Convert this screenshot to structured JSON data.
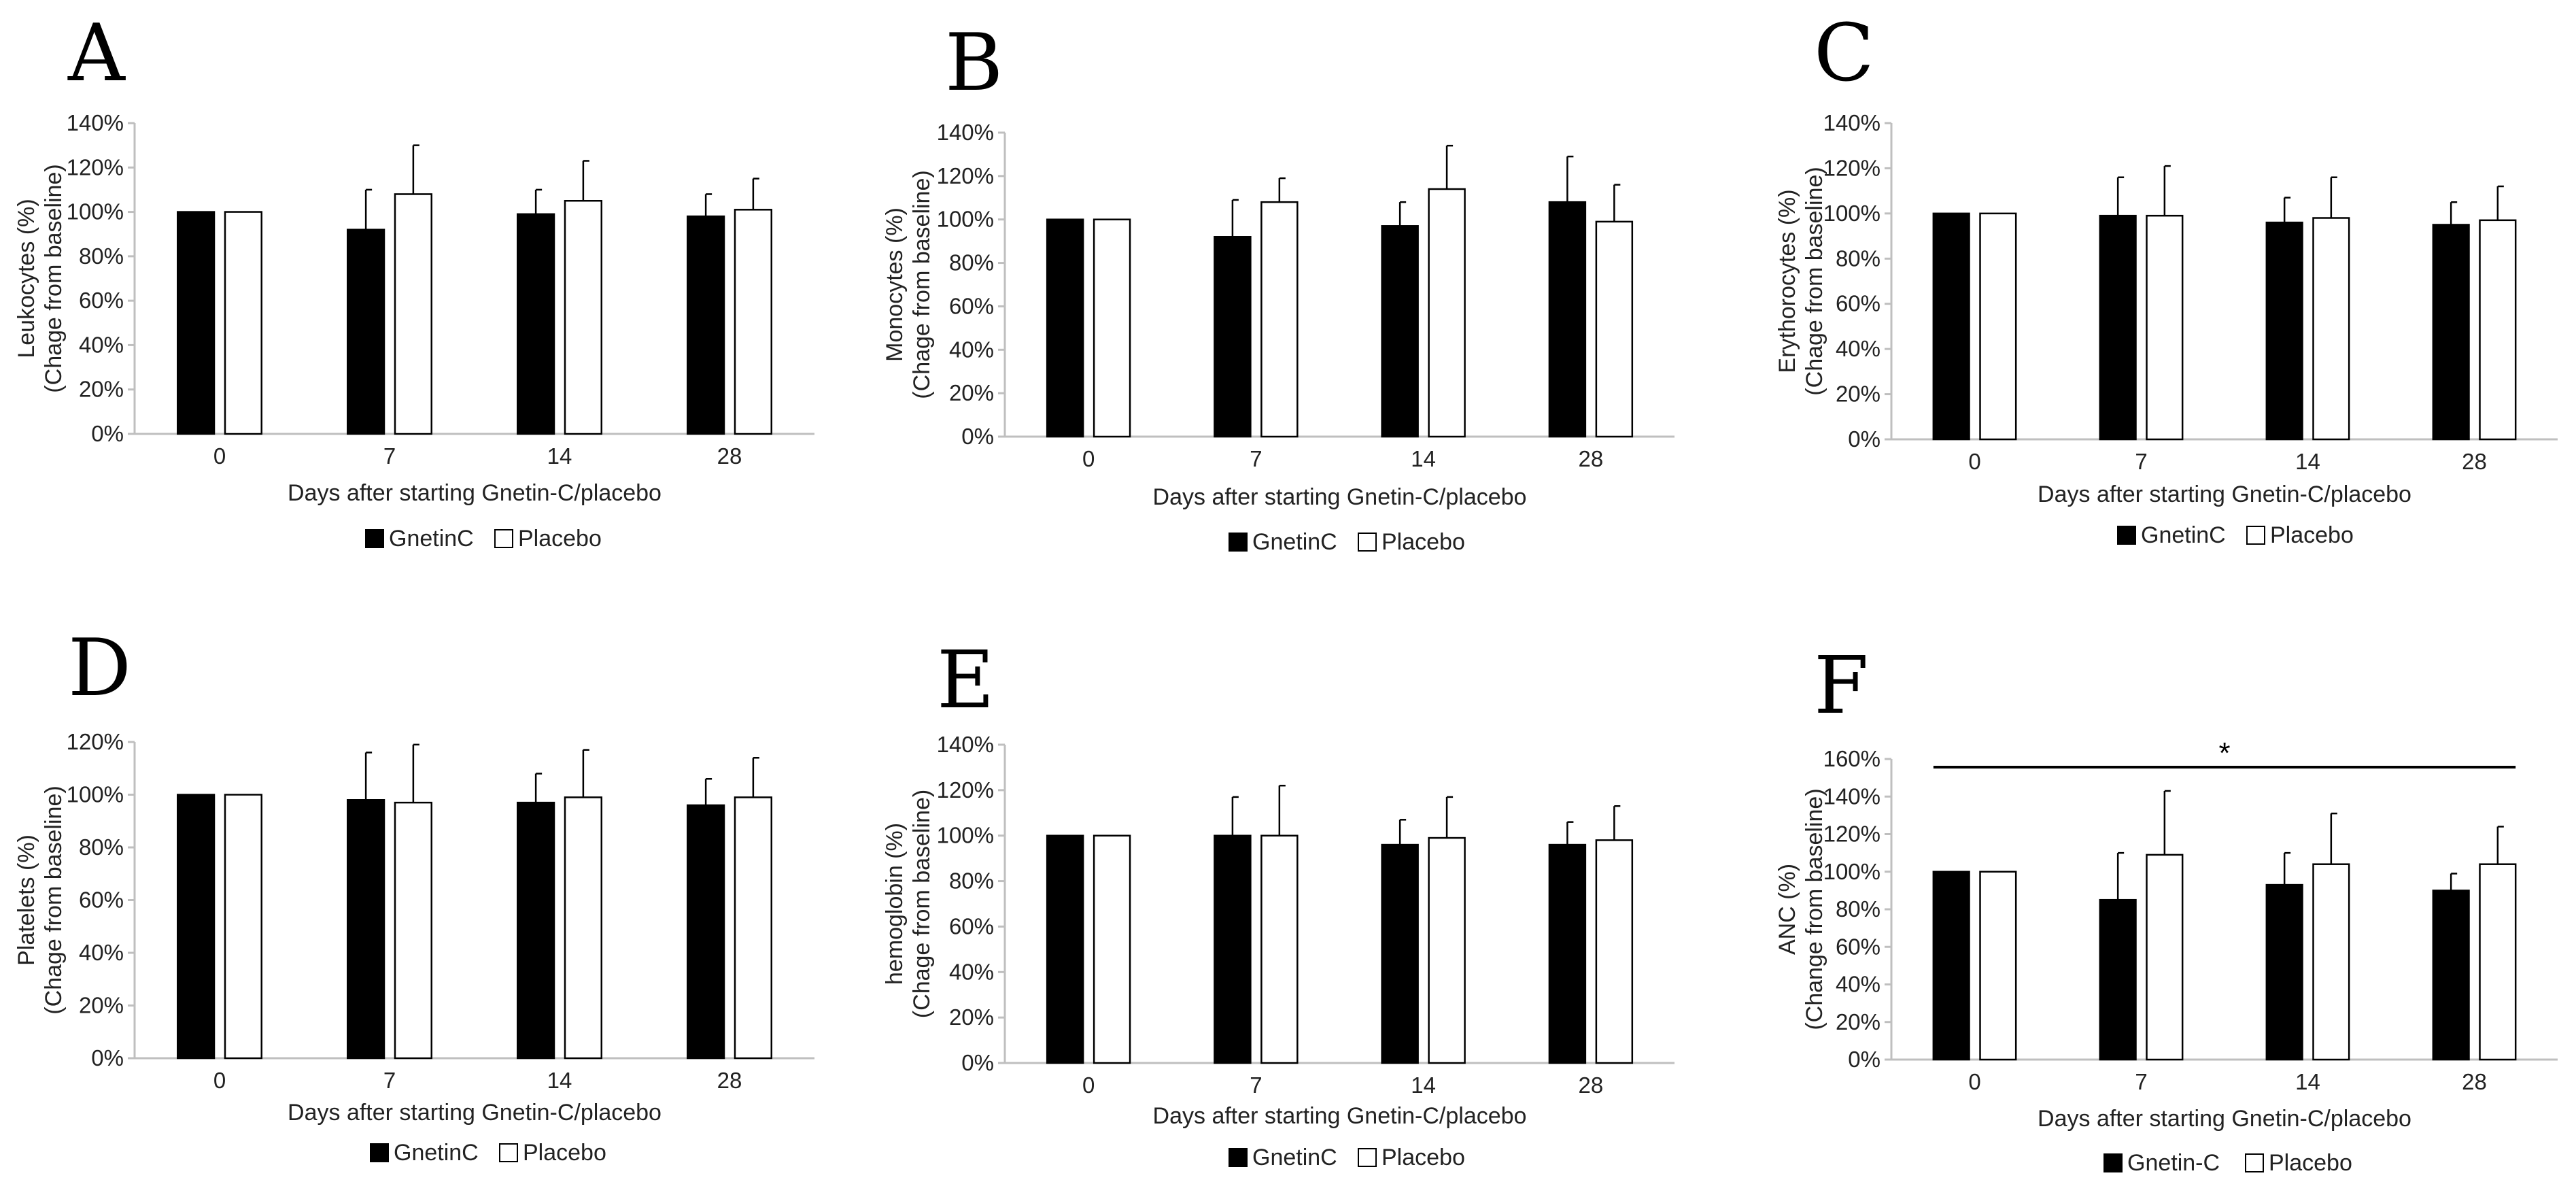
{
  "figure": {
    "colors": {
      "treatment": "#000000",
      "placebo": "#ffffff",
      "outline": "#000000",
      "axis": "#bfbfbf"
    }
  },
  "chart_data": [
    {
      "panel": "A",
      "type": "bar",
      "ylabel_line1": "Leukocytes (%)",
      "ylabel_line2": "(Chage from baseline)",
      "xlabel": "Days after starting Gnetin-C/placebo",
      "categories": [
        "0",
        "7",
        "14",
        "28"
      ],
      "ylim": [
        0,
        140
      ],
      "ystep": 20,
      "yticks": [
        "0%",
        "20%",
        "40%",
        "60%",
        "80%",
        "100%",
        "120%",
        "140%"
      ],
      "series": [
        {
          "name": "GnetinC",
          "values": [
            100,
            92,
            99,
            98
          ],
          "errors": [
            0,
            18,
            11,
            10
          ]
        },
        {
          "name": "Placebo",
          "values": [
            100,
            108,
            105,
            101
          ],
          "errors": [
            0,
            22,
            18,
            14
          ]
        }
      ]
    },
    {
      "panel": "B",
      "type": "bar",
      "ylabel_line1": "Monocytes (%)",
      "ylabel_line2": "(Chage from baseline)",
      "xlabel": "Days after starting Gnetin-C/placebo",
      "categories": [
        "0",
        "7",
        "14",
        "28"
      ],
      "ylim": [
        0,
        140
      ],
      "ystep": 20,
      "yticks": [
        "0%",
        "20%",
        "40%",
        "60%",
        "80%",
        "100%",
        "120%",
        "140%"
      ],
      "series": [
        {
          "name": "GnetinC",
          "values": [
            100,
            92,
            97,
            108
          ],
          "errors": [
            0,
            17,
            11,
            21
          ]
        },
        {
          "name": "Placebo",
          "values": [
            100,
            108,
            114,
            99
          ],
          "errors": [
            0,
            11,
            20,
            17
          ]
        }
      ]
    },
    {
      "panel": "C",
      "type": "bar",
      "ylabel_line1": "Erythorocytes (%)",
      "ylabel_line2": "(Chage from baseline)",
      "xlabel": "Days after starting Gnetin-C/placebo",
      "categories": [
        "0",
        "7",
        "14",
        "28"
      ],
      "ylim": [
        0,
        140
      ],
      "ystep": 20,
      "yticks": [
        "0%",
        "20%",
        "40%",
        "60%",
        "80%",
        "100%",
        "120%",
        "140%"
      ],
      "series": [
        {
          "name": "GnetinC",
          "values": [
            100,
            99,
            96,
            95
          ],
          "errors": [
            0,
            17,
            11,
            10
          ]
        },
        {
          "name": "Placebo",
          "values": [
            100,
            99,
            98,
            97
          ],
          "errors": [
            0,
            22,
            18,
            15
          ]
        }
      ]
    },
    {
      "panel": "D",
      "type": "bar",
      "ylabel_line1": "Platelets (%)",
      "ylabel_line2": "(Chage from baseline)",
      "xlabel": "Days after starting Gnetin-C/placebo",
      "categories": [
        "0",
        "7",
        "14",
        "28"
      ],
      "ylim": [
        0,
        120
      ],
      "ystep": 20,
      "yticks": [
        "0%",
        "20%",
        "40%",
        "60%",
        "80%",
        "100%",
        "120%"
      ],
      "series": [
        {
          "name": "GnetinC",
          "values": [
            100,
            98,
            97,
            96
          ],
          "errors": [
            0,
            18,
            11,
            10
          ]
        },
        {
          "name": "Placebo",
          "values": [
            100,
            97,
            99,
            99
          ],
          "errors": [
            0,
            22,
            18,
            15
          ]
        }
      ]
    },
    {
      "panel": "E",
      "type": "bar",
      "ylabel_line1": "hemoglobin (%)",
      "ylabel_line2": "(Chage from baseline)",
      "xlabel": "Days after starting Gnetin-C/placebo",
      "categories": [
        "0",
        "7",
        "14",
        "28"
      ],
      "ylim": [
        0,
        140
      ],
      "ystep": 20,
      "yticks": [
        "0%",
        "20%",
        "40%",
        "60%",
        "80%",
        "100%",
        "120%",
        "140%"
      ],
      "series": [
        {
          "name": "GnetinC",
          "values": [
            100,
            100,
            96,
            96
          ],
          "errors": [
            0,
            17,
            11,
            10
          ]
        },
        {
          "name": "Placebo",
          "values": [
            100,
            100,
            99,
            98
          ],
          "errors": [
            0,
            22,
            18,
            15
          ]
        }
      ]
    },
    {
      "panel": "F",
      "type": "bar",
      "ylabel_line1": "ANC (%)",
      "ylabel_line2": "(Change from baseline)",
      "xlabel": "Days after starting Gnetin-C/placebo",
      "categories": [
        "0",
        "7",
        "14",
        "28"
      ],
      "ylim": [
        0,
        160
      ],
      "ystep": 20,
      "yticks": [
        "0%",
        "20%",
        "40%",
        "60%",
        "80%",
        "100%",
        "120%",
        "140%",
        "160%"
      ],
      "series": [
        {
          "name": "Gnetin-C",
          "values": [
            100,
            85,
            93,
            90
          ],
          "errors": [
            0,
            25,
            17,
            9
          ]
        },
        {
          "name": "Placebo",
          "values": [
            100,
            109,
            104,
            104
          ],
          "errors": [
            0,
            34,
            27,
            20
          ]
        }
      ],
      "significance": {
        "from": "0",
        "to": "28",
        "label": "*"
      }
    }
  ]
}
